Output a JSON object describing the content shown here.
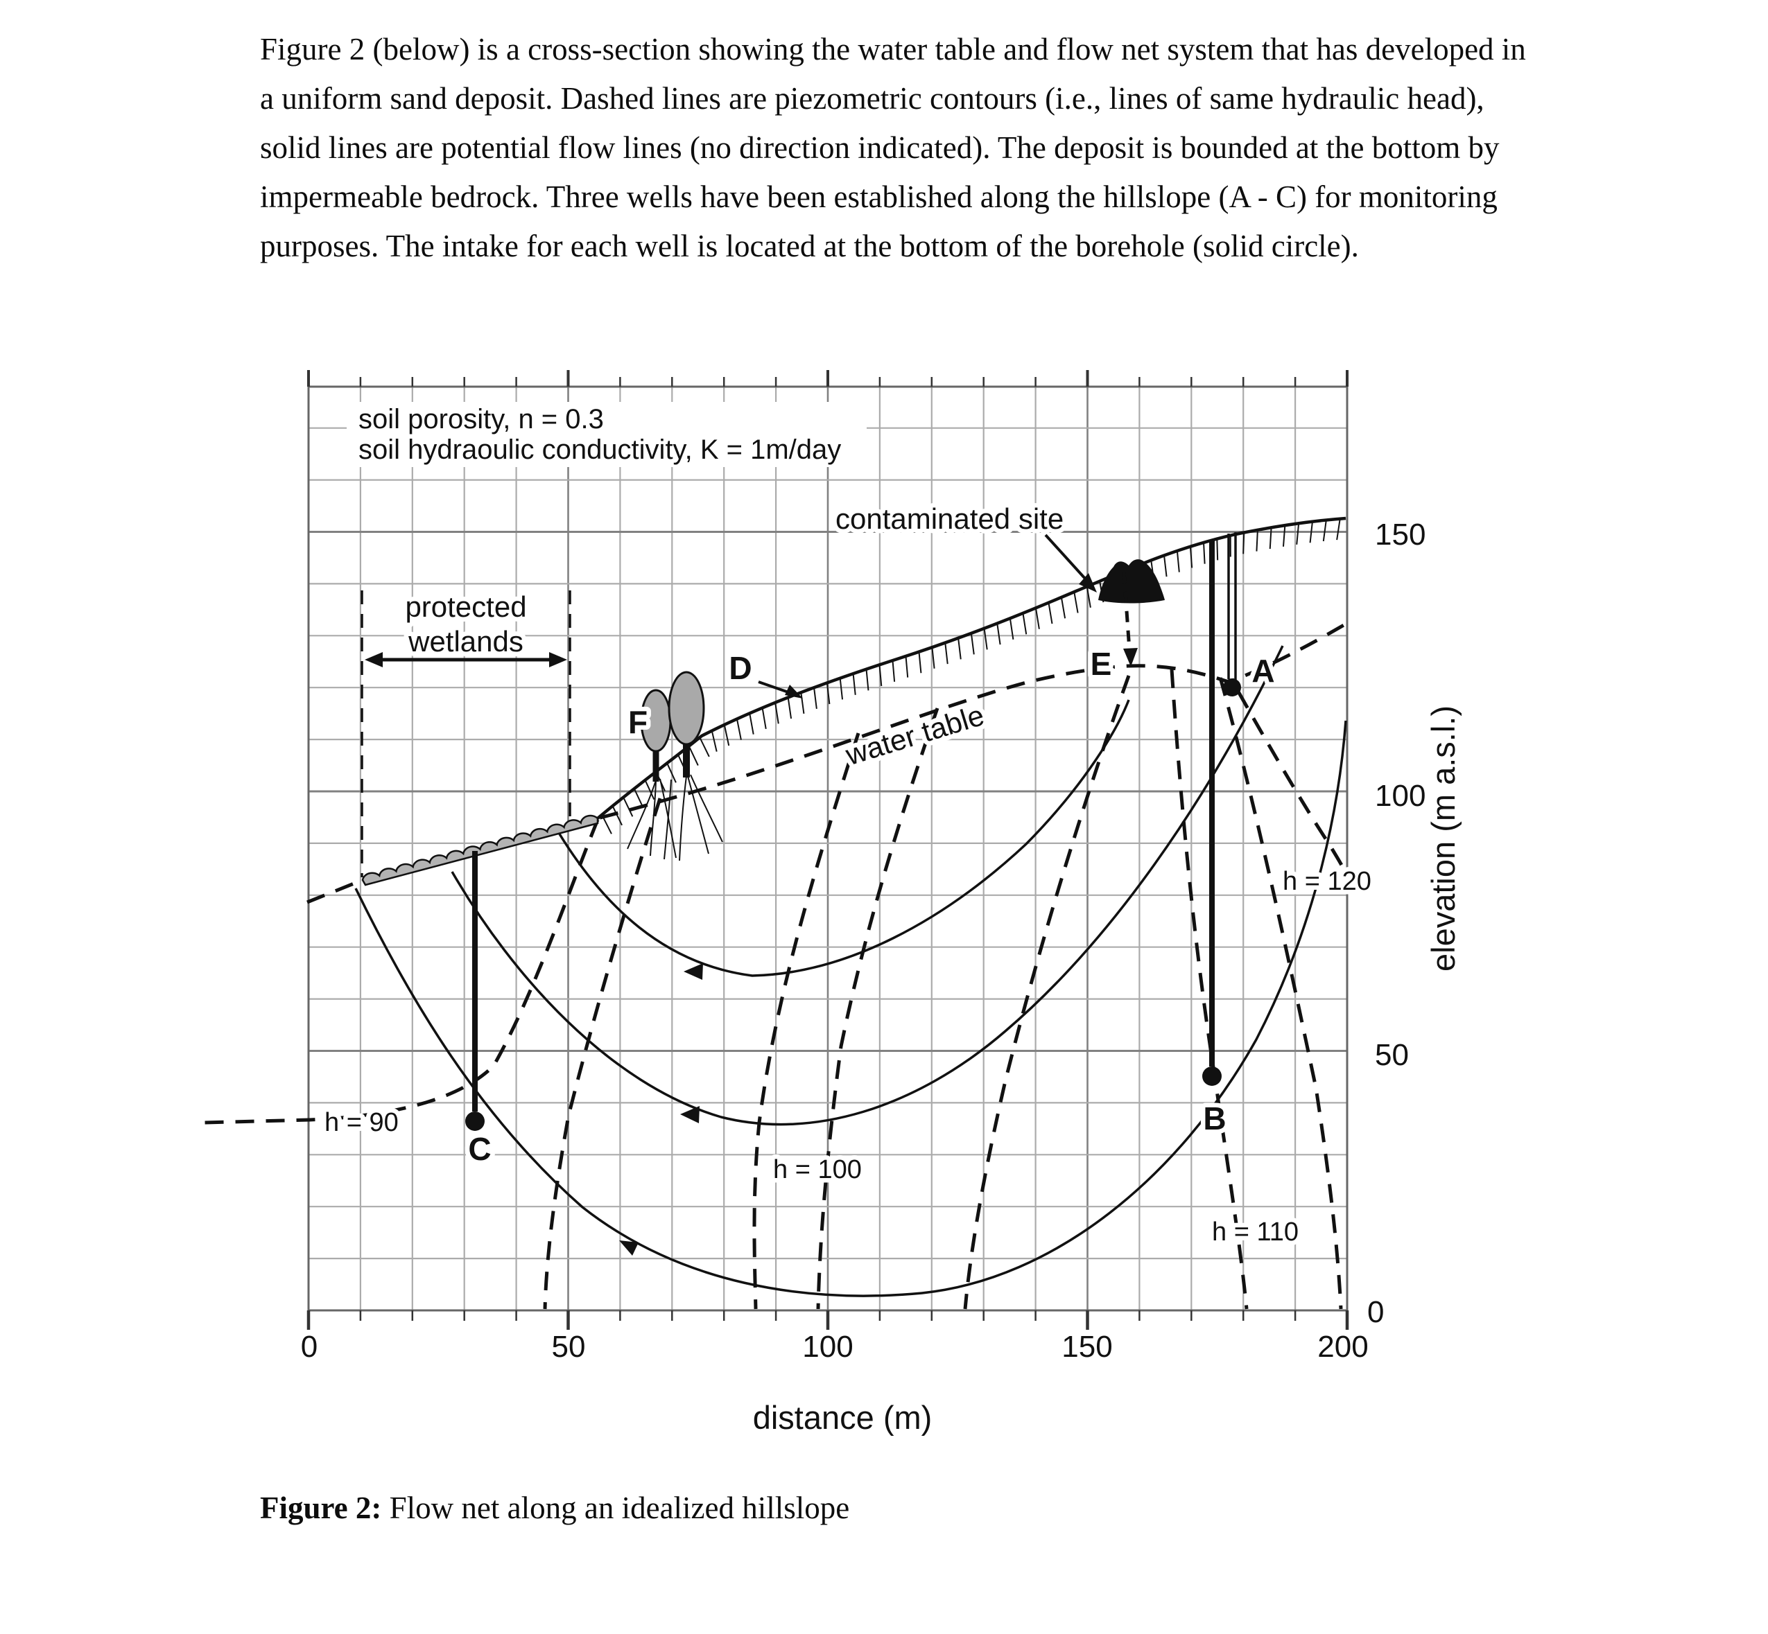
{
  "page": {
    "paragraph": "Figure 2 (below) is a cross-section showing the water table and flow net system that has developed in a uniform sand deposit. Dashed lines are piezometric contours (i.e., lines of same hydraulic head), solid lines are potential flow lines (no direction indicated). The deposit is bounded at the bottom by impermeable bedrock. Three wells have been established along the hillslope (A - C) for monitoring purposes. The intake for each well is located at the bottom of the borehole (solid circle).",
    "caption_label": "Figure 2:",
    "caption_text": " Flow net along an idealized hillslope"
  },
  "figure": {
    "params_line1": "soil porosity, n = 0.3",
    "params_line2": "soil hydraoulic conductivity, K = 1m/day",
    "labels": {
      "contaminated_site": "contaminated site",
      "protected_line1": "protected",
      "protected_line2": "wetlands",
      "water_table": "water table",
      "well_a": "A",
      "well_b": "B",
      "well_c": "C",
      "point_d": "D",
      "point_e": "E",
      "point_f": "F",
      "h90": "h = 90",
      "h100": "h = 100",
      "h110": "h = 110",
      "h120": "h = 120"
    },
    "x_axis": {
      "title": "distance (m)",
      "ticks": [
        "0",
        "50",
        "100",
        "150",
        "200"
      ]
    },
    "y_axis": {
      "title": "elevation (m  a.s.l.)",
      "ticks": [
        "150",
        "100",
        "50",
        "0"
      ]
    },
    "colors": {
      "ink": "#111111",
      "grid_minor": "#ababab",
      "grid_major": "#818181",
      "marsh_gray": "#b3b3b3",
      "canopy_gray": "#a9a9a9"
    }
  }
}
